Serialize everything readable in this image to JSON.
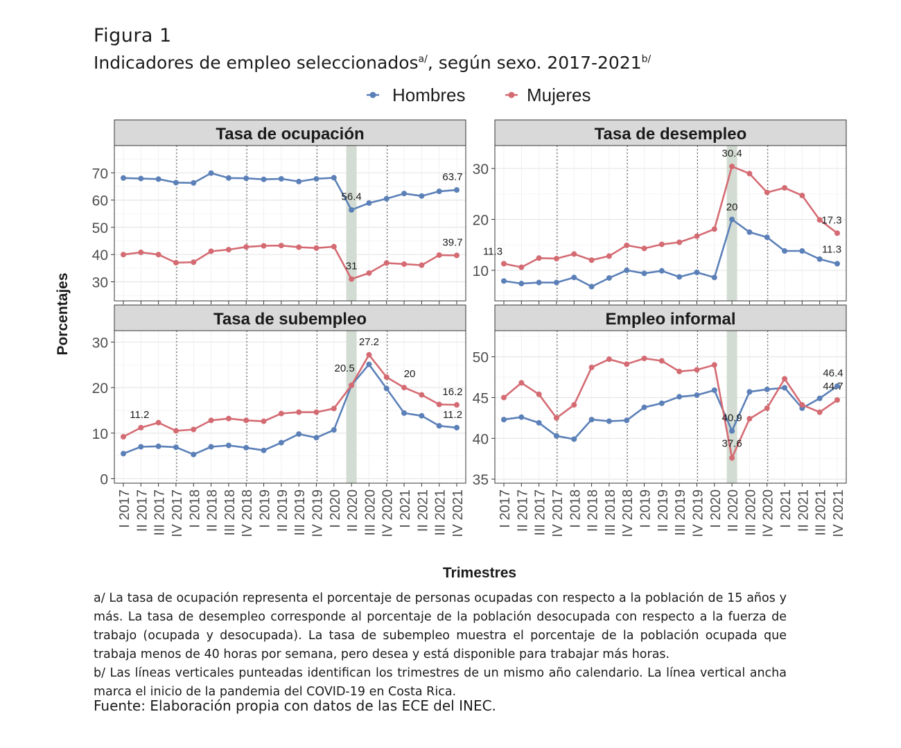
{
  "figure": {
    "label": "Figura 1",
    "title": "Indicadores de empleo seleccionados",
    "title_sup_a": "a/",
    "title_years": ", según sexo. 2017-2021",
    "title_sup_b": "b/"
  },
  "legend": {
    "entries": [
      {
        "name": "Hombres",
        "color": "#5b80b8"
      },
      {
        "name": "Mujeres",
        "color": "#d46b73"
      }
    ]
  },
  "axes": {
    "ylabel": "Porcentajes",
    "xlabel": "Trimestres"
  },
  "chart_data": [
    {
      "type": "line",
      "title": "Tasa de ocupación",
      "x": [
        "I 2017",
        "II 2017",
        "III 2017",
        "IV 2017",
        "I 2018",
        "II 2018",
        "III 2018",
        "IV 2018",
        "I 2019",
        "II 2019",
        "III 2019",
        "IV 2019",
        "I 2020",
        "II 2020",
        "III 2020",
        "IV 2020",
        "I 2021",
        "II 2021",
        "III 2021",
        "IV 2021"
      ],
      "ylim": [
        23,
        80
      ],
      "yticks": [
        30,
        40,
        50,
        60,
        70
      ],
      "series": [
        {
          "name": "Hombres",
          "values": [
            68.1,
            67.9,
            67.7,
            66.4,
            66.3,
            69.9,
            68.1,
            68.0,
            67.6,
            67.8,
            66.8,
            67.8,
            68.2,
            56.4,
            58.9,
            60.5,
            62.4,
            61.5,
            63.2,
            63.7
          ]
        },
        {
          "name": "Mujeres",
          "values": [
            40.0,
            40.8,
            40.0,
            37.0,
            37.2,
            41.2,
            41.8,
            42.8,
            43.2,
            43.3,
            42.7,
            42.4,
            42.9,
            31.0,
            33.2,
            36.9,
            36.5,
            36.1,
            39.8,
            39.7
          ]
        }
      ],
      "annotations": [
        {
          "x": "II 2020",
          "series": "Hombres",
          "text": "56.4"
        },
        {
          "x": "IV 2021",
          "series": "Hombres",
          "text": "63.7"
        },
        {
          "x": "II 2020",
          "series": "Mujeres",
          "text": "31"
        },
        {
          "x": "IV 2021",
          "series": "Mujeres",
          "text": "39.7"
        }
      ]
    },
    {
      "type": "line",
      "title": "Tasa de desempleo",
      "x": [
        "I 2017",
        "II 2017",
        "III 2017",
        "IV 2017",
        "I 2018",
        "II 2018",
        "III 2018",
        "IV 2018",
        "I 2019",
        "II 2019",
        "III 2019",
        "IV 2019",
        "I 2020",
        "II 2020",
        "III 2020",
        "IV 2020",
        "I 2021",
        "II 2021",
        "III 2021",
        "IV 2021"
      ],
      "ylim": [
        4,
        34.5
      ],
      "yticks": [
        10,
        20,
        30
      ],
      "series": [
        {
          "name": "Hombres",
          "values": [
            7.9,
            7.4,
            7.6,
            7.6,
            8.6,
            6.8,
            8.5,
            10.0,
            9.4,
            9.9,
            8.7,
            9.6,
            8.6,
            20.0,
            17.5,
            16.5,
            13.8,
            13.8,
            12.2,
            11.3
          ]
        },
        {
          "name": "Mujeres",
          "values": [
            11.3,
            10.6,
            12.4,
            12.3,
            13.2,
            12.0,
            12.8,
            14.9,
            14.3,
            15.1,
            15.5,
            16.7,
            18.1,
            30.4,
            29.0,
            25.3,
            26.2,
            24.7,
            19.9,
            17.3
          ]
        }
      ],
      "annotations": [
        {
          "x": "I 2017",
          "series": "Mujeres",
          "text": "11.3"
        },
        {
          "x": "II 2020",
          "series": "Mujeres",
          "text": "30.4"
        },
        {
          "x": "II 2020",
          "series": "Hombres",
          "text": "20"
        },
        {
          "x": "IV 2021",
          "series": "Mujeres",
          "text": "17.3"
        },
        {
          "x": "IV 2021",
          "series": "Hombres",
          "text": "11.3"
        }
      ]
    },
    {
      "type": "line",
      "title": "Tasa de subempleo",
      "x": [
        "I 2017",
        "II 2017",
        "III 2017",
        "IV 2017",
        "I 2018",
        "II 2018",
        "III 2018",
        "IV 2018",
        "I 2019",
        "II 2019",
        "III 2019",
        "IV 2019",
        "I 2020",
        "II 2020",
        "III 2020",
        "IV 2020",
        "I 2021",
        "II 2021",
        "III 2021",
        "IV 2021"
      ],
      "ylim": [
        -1,
        32.5
      ],
      "yticks": [
        0,
        10,
        20,
        30
      ],
      "series": [
        {
          "name": "Hombres",
          "values": [
            5.5,
            7.0,
            7.1,
            6.9,
            5.3,
            7.0,
            7.3,
            6.8,
            6.2,
            7.9,
            9.8,
            9.0,
            10.7,
            20.5,
            25.1,
            19.8,
            14.4,
            13.8,
            11.6,
            11.2
          ]
        },
        {
          "name": "Mujeres",
          "values": [
            9.2,
            11.2,
            12.3,
            10.5,
            10.8,
            12.8,
            13.2,
            12.8,
            12.6,
            14.3,
            14.6,
            14.6,
            15.4,
            20.5,
            27.2,
            22.3,
            20.0,
            18.4,
            16.3,
            16.2
          ]
        }
      ],
      "annotations": [
        {
          "x": "II 2017",
          "series": "Mujeres",
          "text": "11.2"
        },
        {
          "x": "II 2020",
          "series": "Hombres",
          "text": "20.5"
        },
        {
          "x": "III 2020",
          "series": "Mujeres",
          "text": "27.2"
        },
        {
          "x": "I 2021",
          "series": "Mujeres",
          "text": "20"
        },
        {
          "x": "IV 2021",
          "series": "Mujeres",
          "text": "16.2"
        },
        {
          "x": "IV 2021",
          "series": "Hombres",
          "text": "11.2"
        }
      ]
    },
    {
      "type": "line",
      "title": "Empleo informal",
      "x": [
        "I 2017",
        "II 2017",
        "III 2017",
        "IV 2017",
        "I 2018",
        "II 2018",
        "III 2018",
        "IV 2018",
        "I 2019",
        "II 2019",
        "III 2019",
        "IV 2019",
        "I 2020",
        "II 2020",
        "III 2020",
        "IV 2020",
        "I 2021",
        "II 2021",
        "III 2021",
        "IV 2021"
      ],
      "ylim": [
        34.5,
        53.2
      ],
      "yticks": [
        35,
        40,
        45,
        50
      ],
      "series": [
        {
          "name": "Hombres",
          "values": [
            42.3,
            42.6,
            41.9,
            40.3,
            39.9,
            42.3,
            42.1,
            42.2,
            43.8,
            44.3,
            45.1,
            45.3,
            45.9,
            40.9,
            45.7,
            46.0,
            46.2,
            43.7,
            44.9,
            46.4
          ]
        },
        {
          "name": "Mujeres",
          "values": [
            45.0,
            46.8,
            45.4,
            42.5,
            44.1,
            48.7,
            49.7,
            49.1,
            49.8,
            49.5,
            48.2,
            48.4,
            49.0,
            37.6,
            42.4,
            43.7,
            47.3,
            44.1,
            43.2,
            44.7
          ]
        }
      ],
      "annotations": [
        {
          "x": "II 2020",
          "series": "Hombres",
          "text": "40.9"
        },
        {
          "x": "II 2020",
          "series": "Mujeres",
          "text": "37.6"
        },
        {
          "x": "IV 2021",
          "series": "Hombres",
          "text": "46.4"
        },
        {
          "x": "IV 2021",
          "series": "Mujeres",
          "text": "44.7"
        }
      ]
    }
  ],
  "notes": {
    "a": "a/ La tasa de ocupación representa el porcentaje de personas ocupadas con respecto a la población de 15 años y más. La tasa de desempleo corresponde al porcentaje de la población desocupada con respecto a la fuerza de trabajo (ocupada y desocupada). La tasa de subempleo muestra el porcentaje de la población ocupada que trabaja menos de 40 horas por semana, pero desea y está disponible para trabajar más horas.",
    "b": "b/ Las líneas verticales punteadas identifican los trimestres de un mismo año calendario. La línea vertical ancha marca el inicio de la pandemia del COVID-19 en Costa Rica.",
    "source": "Fuente: Elaboración propia con datos de las ECE del INEC."
  }
}
